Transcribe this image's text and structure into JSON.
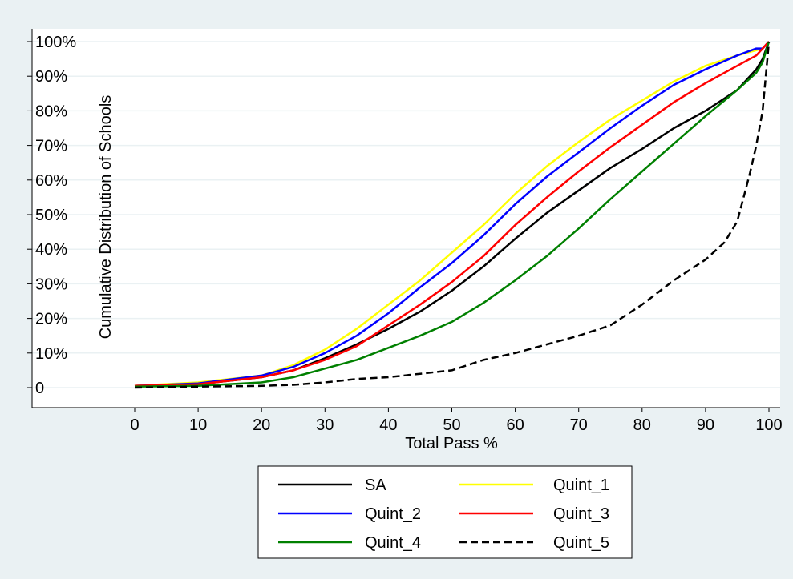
{
  "chart_data": {
    "type": "line",
    "xlabel": "Total Pass %",
    "ylabel": "Cumulative Distribution of Schools",
    "xlim": [
      0,
      100
    ],
    "ylim": [
      0,
      1
    ],
    "x_ticks": [
      0,
      10,
      20,
      30,
      40,
      50,
      60,
      70,
      80,
      90,
      100
    ],
    "x_tick_labels": [
      "0",
      "10",
      "20",
      "30",
      "40",
      "50",
      "60",
      "70",
      "80",
      "90",
      "100"
    ],
    "y_ticks": [
      0,
      0.1,
      0.2,
      0.3,
      0.4,
      0.5,
      0.6,
      0.7,
      0.8,
      0.9,
      1.0
    ],
    "y_tick_labels": [
      "0",
      "10%",
      "20%",
      "30%",
      "40%",
      "50%",
      "60%",
      "70%",
      "80%",
      "90%",
      "100%"
    ],
    "grid": "horizontal",
    "legend_position": "bottom",
    "series": [
      {
        "name": "SA",
        "color": "#000000",
        "dash": "solid",
        "x": [
          0,
          10,
          20,
          25,
          30,
          35,
          40,
          45,
          50,
          55,
          60,
          65,
          70,
          75,
          80,
          85,
          90,
          95,
          98,
          99,
          100
        ],
        "y": [
          0.005,
          0.01,
          0.03,
          0.05,
          0.085,
          0.125,
          0.17,
          0.22,
          0.28,
          0.35,
          0.43,
          0.505,
          0.57,
          0.635,
          0.69,
          0.75,
          0.8,
          0.86,
          0.92,
          0.95,
          1.0
        ]
      },
      {
        "name": "Quint_1",
        "color": "#ffff00",
        "dash": "solid",
        "x": [
          0,
          10,
          20,
          25,
          30,
          35,
          40,
          45,
          50,
          55,
          60,
          65,
          70,
          75,
          80,
          85,
          90,
          95,
          98,
          99,
          100
        ],
        "y": [
          0.005,
          0.015,
          0.035,
          0.065,
          0.11,
          0.17,
          0.24,
          0.31,
          0.39,
          0.47,
          0.56,
          0.64,
          0.71,
          0.775,
          0.83,
          0.885,
          0.93,
          0.96,
          0.975,
          0.98,
          1.0
        ]
      },
      {
        "name": "Quint_2",
        "color": "#0000ff",
        "dash": "solid",
        "x": [
          0,
          10,
          20,
          25,
          30,
          35,
          40,
          45,
          50,
          55,
          60,
          65,
          70,
          75,
          80,
          85,
          90,
          95,
          98,
          99,
          100
        ],
        "y": [
          0.005,
          0.012,
          0.035,
          0.06,
          0.1,
          0.15,
          0.215,
          0.29,
          0.36,
          0.44,
          0.53,
          0.61,
          0.68,
          0.75,
          0.815,
          0.875,
          0.92,
          0.96,
          0.98,
          0.98,
          1.0
        ]
      },
      {
        "name": "Quint_3",
        "color": "#ff0000",
        "dash": "solid",
        "x": [
          0,
          10,
          20,
          25,
          30,
          35,
          40,
          45,
          50,
          55,
          60,
          65,
          70,
          75,
          80,
          85,
          90,
          95,
          98,
          99,
          100
        ],
        "y": [
          0.005,
          0.01,
          0.03,
          0.05,
          0.08,
          0.12,
          0.18,
          0.24,
          0.305,
          0.38,
          0.47,
          0.55,
          0.625,
          0.695,
          0.76,
          0.825,
          0.88,
          0.93,
          0.96,
          0.98,
          1.0
        ]
      },
      {
        "name": "Quint_4",
        "color": "#008000",
        "dash": "solid",
        "x": [
          0,
          10,
          20,
          25,
          30,
          35,
          40,
          45,
          50,
          55,
          60,
          65,
          70,
          75,
          80,
          85,
          90,
          95,
          98,
          99,
          100
        ],
        "y": [
          0.003,
          0.005,
          0.015,
          0.03,
          0.055,
          0.08,
          0.115,
          0.15,
          0.19,
          0.245,
          0.31,
          0.38,
          0.46,
          0.545,
          0.625,
          0.705,
          0.785,
          0.86,
          0.91,
          0.94,
          1.0
        ]
      },
      {
        "name": "Quint_5",
        "color": "#000000",
        "dash": "dashed",
        "x": [
          0,
          10,
          20,
          25,
          30,
          35,
          40,
          45,
          50,
          55,
          60,
          65,
          70,
          75,
          80,
          85,
          90,
          93,
          95,
          96,
          97,
          98,
          99,
          100
        ],
        "y": [
          0.0,
          0.003,
          0.005,
          0.008,
          0.015,
          0.025,
          0.03,
          0.04,
          0.05,
          0.08,
          0.1,
          0.125,
          0.15,
          0.18,
          0.24,
          0.31,
          0.37,
          0.42,
          0.48,
          0.55,
          0.62,
          0.7,
          0.8,
          1.0
        ]
      }
    ]
  }
}
